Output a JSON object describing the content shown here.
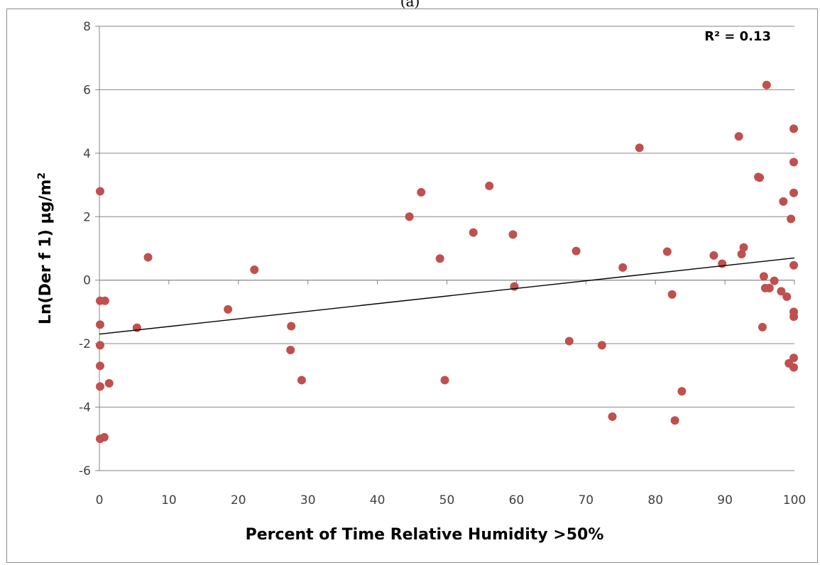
{
  "panel_label": "(a)",
  "chart_data": {
    "type": "scatter",
    "title": "",
    "xlabel": "Percent of Time Relative Humidity >50%",
    "ylabel": "Ln(Der f 1)  µg/m",
    "ylabel_superscript": "2",
    "annotation": "R² = 0.13",
    "xlim": [
      0,
      100
    ],
    "ylim": [
      -6,
      8
    ],
    "xticks": [
      0,
      10,
      20,
      30,
      40,
      50,
      60,
      70,
      80,
      90,
      100
    ],
    "yticks": [
      -6,
      -4,
      -2,
      0,
      2,
      4,
      6,
      8
    ],
    "grid": "horizontal",
    "point_color": "#c0504d",
    "trendline": {
      "x": [
        0,
        100
      ],
      "y": [
        -1.7,
        0.7
      ],
      "color": "#000000"
    },
    "points": [
      [
        0.1,
        2.8
      ],
      [
        0.1,
        -0.65
      ],
      [
        0.8,
        -0.65
      ],
      [
        0.1,
        -1.4
      ],
      [
        0.1,
        -2.05
      ],
      [
        0.1,
        -2.7
      ],
      [
        0.1,
        -3.35
      ],
      [
        0.1,
        -5.0
      ],
      [
        0.7,
        -4.95
      ],
      [
        1.4,
        -3.25
      ],
      [
        5.4,
        -1.5
      ],
      [
        7.0,
        0.72
      ],
      [
        18.5,
        -0.92
      ],
      [
        22.3,
        0.33
      ],
      [
        27.6,
        -1.45
      ],
      [
        27.5,
        -2.2
      ],
      [
        29.1,
        -3.15
      ],
      [
        44.6,
        2.0
      ],
      [
        46.3,
        2.77
      ],
      [
        49.0,
        0.68
      ],
      [
        49.7,
        -3.15
      ],
      [
        53.8,
        1.5
      ],
      [
        56.1,
        2.97
      ],
      [
        59.5,
        1.44
      ],
      [
        59.7,
        -0.2
      ],
      [
        67.6,
        -1.92
      ],
      [
        68.6,
        0.92
      ],
      [
        72.3,
        -2.05
      ],
      [
        73.8,
        -4.3
      ],
      [
        75.3,
        0.4
      ],
      [
        77.7,
        4.17
      ],
      [
        81.7,
        0.9
      ],
      [
        82.4,
        -0.45
      ],
      [
        82.8,
        -4.42
      ],
      [
        83.8,
        -3.5
      ],
      [
        88.4,
        0.78
      ],
      [
        89.6,
        0.52
      ],
      [
        92.0,
        4.53
      ],
      [
        92.4,
        0.82
      ],
      [
        92.7,
        1.03
      ],
      [
        94.8,
        3.25
      ],
      [
        95.0,
        3.23
      ],
      [
        95.4,
        -1.48
      ],
      [
        95.6,
        0.12
      ],
      [
        95.8,
        -0.25
      ],
      [
        96.0,
        6.15
      ],
      [
        96.4,
        -0.25
      ],
      [
        97.1,
        -0.02
      ],
      [
        98.1,
        -0.35
      ],
      [
        98.4,
        2.48
      ],
      [
        98.9,
        -0.52
      ],
      [
        99.2,
        -2.62
      ],
      [
        99.5,
        1.93
      ],
      [
        99.9,
        4.77
      ],
      [
        99.9,
        3.72
      ],
      [
        99.9,
        2.75
      ],
      [
        99.9,
        0.47
      ],
      [
        99.9,
        -1.0
      ],
      [
        99.9,
        -1.15
      ],
      [
        99.9,
        -2.45
      ],
      [
        99.9,
        -2.75
      ]
    ]
  }
}
